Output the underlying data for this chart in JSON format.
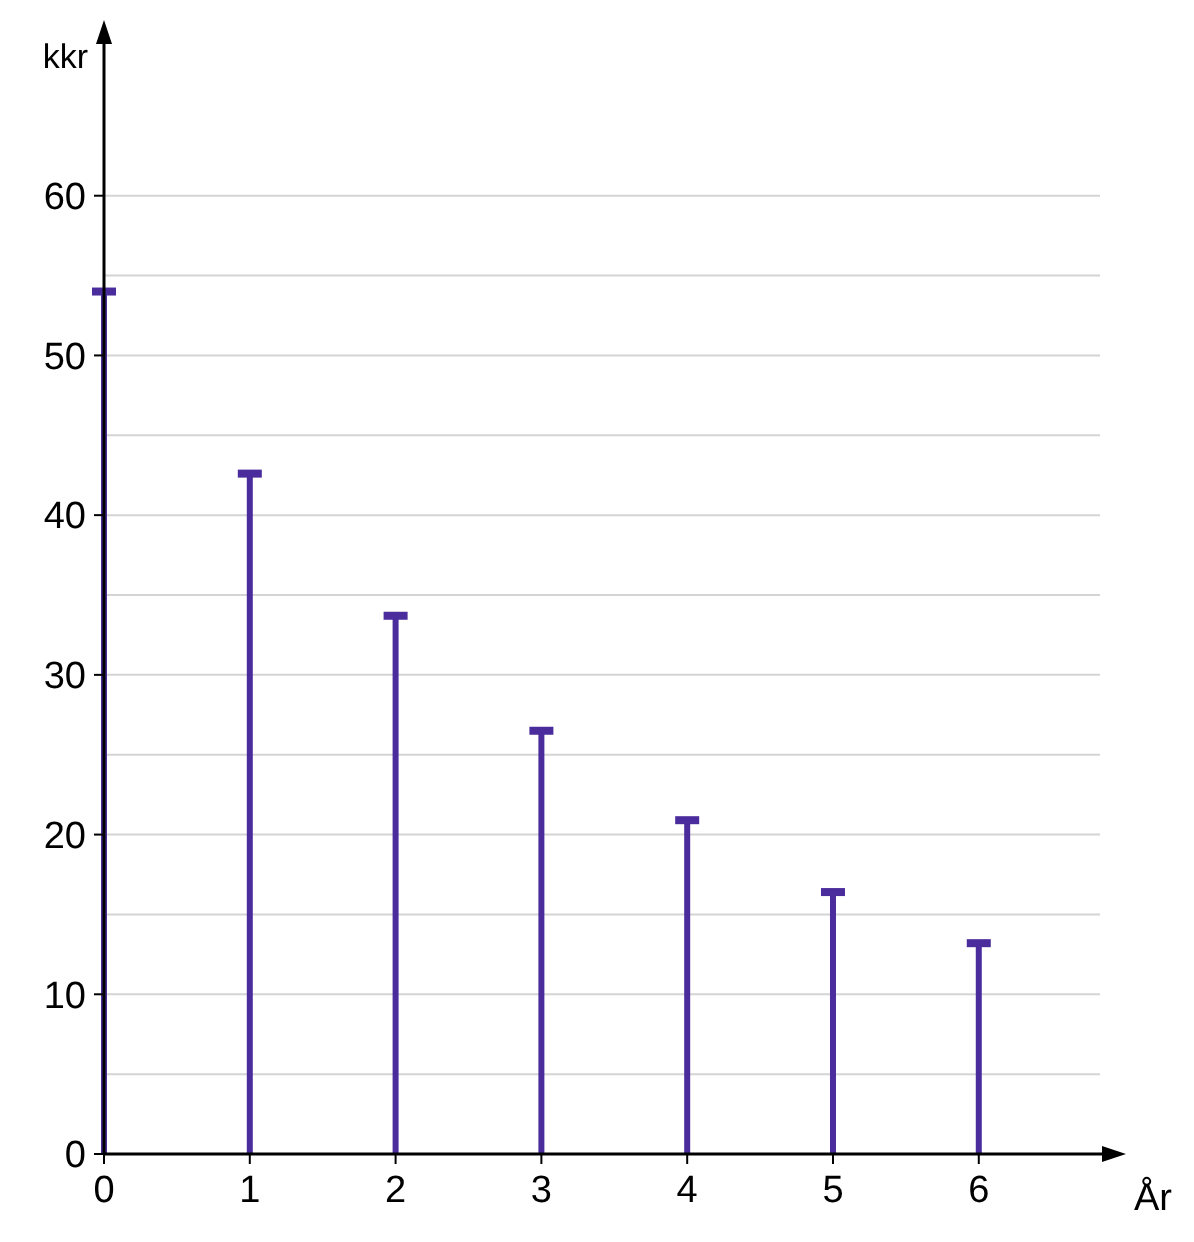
{
  "chart_data": {
    "type": "lollipop",
    "xlabel": "År",
    "ylabel": "kkr",
    "x": [
      0,
      1,
      2,
      3,
      4,
      5,
      6
    ],
    "series": [
      {
        "color": "#4a2c9c",
        "values": [
          54,
          42.6,
          33.7,
          26.5,
          20.9,
          16.4,
          13.2
        ]
      }
    ],
    "xlim": [
      0,
      6.9
    ],
    "xticks": [
      0,
      1,
      2,
      3,
      4,
      5,
      6
    ],
    "ylim": [
      0,
      70
    ],
    "yticks": [
      0,
      {
        "value": 5,
        "label": null
      },
      10,
      {
        "value": 15,
        "label": null
      },
      20,
      {
        "value": 25,
        "label": null
      },
      30,
      {
        "value": 35,
        "label": null
      },
      40,
      {
        "value": 45,
        "label": null
      },
      50,
      {
        "value": 55,
        "label": null
      },
      60
    ],
    "grid": "y",
    "marker": "square"
  }
}
